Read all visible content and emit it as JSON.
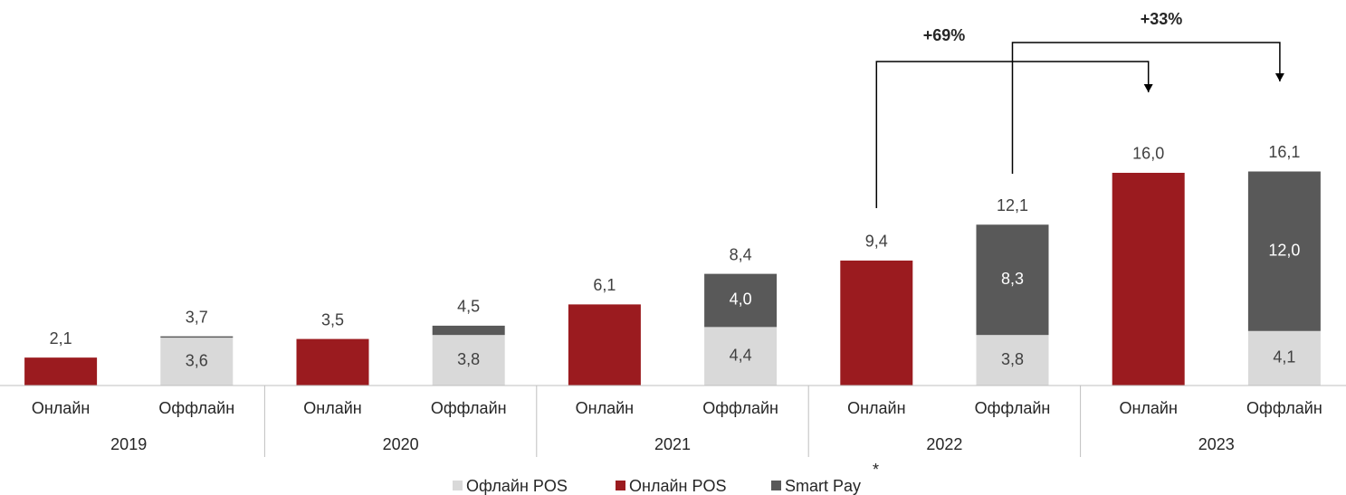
{
  "chart_data": {
    "type": "stacked_bar",
    "categories": [
      "Онлайн",
      "Оффлайн",
      "Онлайн",
      "Оффлайн",
      "Онлайн",
      "Оффлайн",
      "Онлайн",
      "Оффлайн",
      "Онлайн",
      "Оффлайн"
    ],
    "groups": [
      "2019",
      "2020",
      "2021",
      "2022",
      "2023"
    ],
    "series": [
      {
        "name": "Офлайн POS",
        "color": "#d9d9d9",
        "values": [
          null,
          3.6,
          null,
          3.8,
          null,
          4.4,
          null,
          3.8,
          null,
          4.1
        ],
        "value_labels": [
          null,
          "3,6",
          null,
          "3,8",
          null,
          "4,4",
          null,
          "3,8",
          null,
          "4,1"
        ]
      },
      {
        "name": "Онлайн POS",
        "color": "#9b1b1f",
        "values": [
          2.1,
          null,
          3.5,
          null,
          6.1,
          null,
          9.4,
          null,
          16.0,
          null
        ]
      },
      {
        "name": "Smart Pay",
        "color": "#595959",
        "values": [
          null,
          0.1,
          null,
          0.7,
          null,
          4.0,
          null,
          8.3,
          null,
          12.0
        ],
        "value_labels": [
          null,
          null,
          null,
          null,
          null,
          "4,0",
          null,
          "8,3",
          null,
          "12,0"
        ]
      }
    ],
    "totals": [
      2.1,
      3.7,
      3.5,
      4.5,
      6.1,
      8.4,
      9.4,
      12.1,
      16.0,
      16.1
    ],
    "total_labels": [
      "2,1",
      "3,7",
      "3,5",
      "4,5",
      "6,1",
      "8,4",
      "9,4",
      "12,1",
      "16,0",
      "16,1"
    ],
    "annotations": [
      "+69%",
      "+33%"
    ],
    "legend_note": "*",
    "ylim": [
      0,
      29
    ]
  }
}
